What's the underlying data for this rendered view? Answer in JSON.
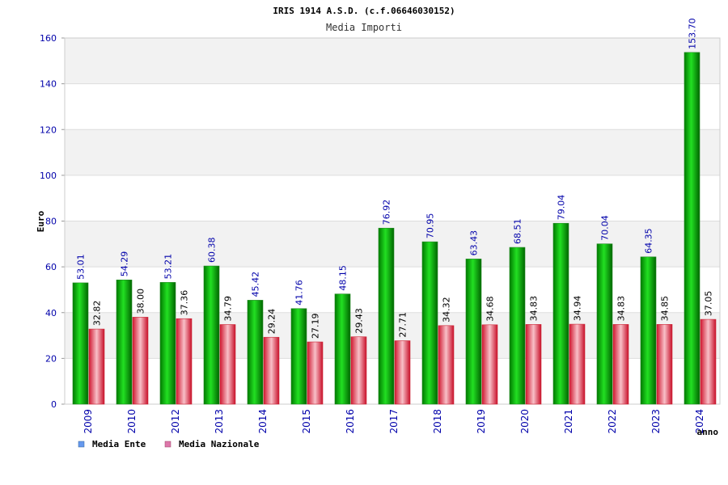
{
  "chart_data": {
    "type": "bar",
    "title": "IRIS 1914 A.S.D. (c.f.06646030152)",
    "subtitle": "Media Importi",
    "ylabel": "Euro",
    "xlabel": "anno",
    "ylim": [
      0,
      160
    ],
    "yticks": [
      0,
      20,
      40,
      60,
      80,
      100,
      120,
      140,
      160
    ],
    "grid": true,
    "legend_position": "bottom-left",
    "categories": [
      "2009",
      "2010",
      "2012",
      "2013",
      "2014",
      "2015",
      "2016",
      "2017",
      "2018",
      "2019",
      "2020",
      "2021",
      "2022",
      "2023",
      "2024"
    ],
    "series": [
      {
        "name": "Media Ente",
        "color": "#00b000",
        "legend_color": "#6699ee",
        "values": [
          53.01,
          54.29,
          53.21,
          60.38,
          45.42,
          41.76,
          48.15,
          76.92,
          70.95,
          63.43,
          68.51,
          79.04,
          70.04,
          64.35,
          153.7
        ],
        "labels": [
          "53.01",
          "54.29",
          "53.21",
          "60.38",
          "45.42",
          "41.76",
          "48.15",
          "76.92",
          "70.95",
          "63.43",
          "68.51",
          "79.04",
          "70.04",
          "64.35",
          "153.70"
        ]
      },
      {
        "name": "Media Nazionale",
        "color": "#e03048",
        "legend_color": "#dd77aa",
        "values": [
          32.82,
          38.0,
          37.36,
          34.79,
          29.24,
          27.19,
          29.43,
          27.71,
          34.32,
          34.68,
          34.83,
          34.94,
          34.83,
          34.85,
          37.05
        ],
        "labels": [
          "32.82",
          "38.00",
          "37.36",
          "34.79",
          "29.24",
          "27.19",
          "29.43",
          "27.71",
          "34.32",
          "34.68",
          "34.83",
          "34.94",
          "34.83",
          "34.85",
          "37.05"
        ]
      }
    ]
  }
}
